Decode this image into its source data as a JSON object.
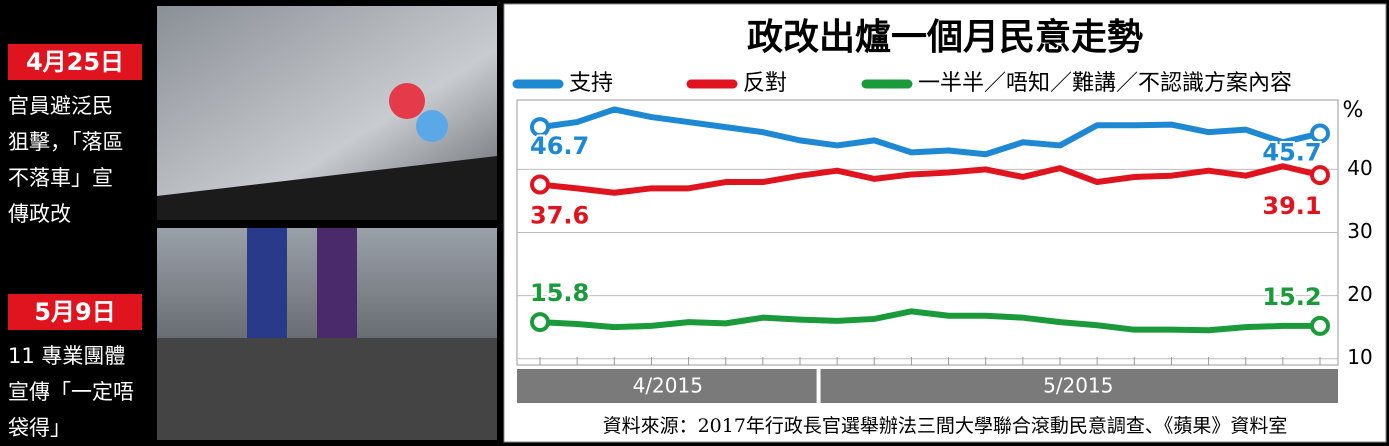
{
  "stories": [
    {
      "date": "4月25日",
      "caption": [
        "官員避泛民",
        "狙擊，「落區",
        "不落車」宣",
        "傳政改"
      ]
    },
    {
      "date": "5月9日",
      "caption": [
        "11 專業團體",
        "宣傳「一定唔",
        "袋得」"
      ]
    }
  ],
  "chart_data": {
    "type": "line",
    "title": "政改出爐一個月民意走勢",
    "y_unit": "%",
    "categories": [
      null,
      null,
      null,
      null,
      null,
      null,
      null,
      null,
      null,
      null,
      null,
      null,
      null,
      null,
      null,
      null,
      null,
      null,
      null,
      null,
      null,
      null
    ],
    "periods": [
      "4/2015",
      "5/2015"
    ],
    "series": [
      {
        "name": "支持",
        "color": "#1e88d2",
        "values": [
          46.7,
          47.5,
          49.5,
          48.3,
          47.5,
          46.7,
          45.9,
          44.6,
          43.8,
          44.6,
          42.7,
          43.0,
          42.4,
          44.3,
          43.8,
          47.0,
          47.0,
          47.1,
          45.9,
          46.3,
          44.3,
          45.7
        ]
      },
      {
        "name": "反對",
        "color": "#e0141e",
        "values": [
          37.6,
          37.0,
          36.3,
          37.0,
          37.0,
          38.0,
          38.0,
          39.0,
          39.8,
          38.5,
          39.2,
          39.5,
          40.0,
          38.8,
          40.2,
          38.0,
          38.8,
          39.0,
          39.8,
          39.0,
          40.5,
          39.1
        ]
      },
      {
        "name": "一半半／唔知／難講／不認識方案內容",
        "color": "#1a9a3a",
        "values": [
          15.8,
          15.5,
          15.0,
          15.2,
          15.8,
          15.6,
          16.5,
          16.2,
          16.0,
          16.3,
          17.5,
          16.8,
          16.8,
          16.5,
          15.8,
          15.3,
          14.6,
          14.6,
          14.5,
          15.0,
          15.2,
          15.2
        ]
      }
    ],
    "ylim": [
      9,
      51
    ],
    "yticks": [
      10,
      20,
      30,
      40
    ],
    "grid": true,
    "source": "資料來源：2017年行政長官選舉辦法三間大學聯合滾動民意調查、《蘋果》資料室"
  }
}
